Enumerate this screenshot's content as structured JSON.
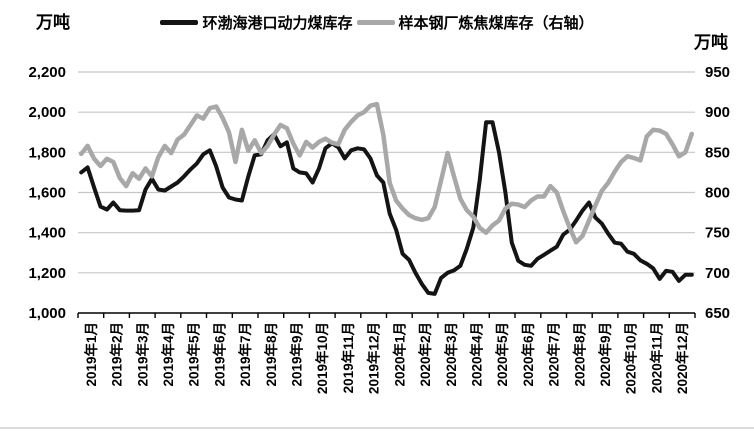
{
  "units": {
    "left": "万吨",
    "right": "万吨"
  },
  "legend": [
    {
      "label": "环渤海港口动力煤库存",
      "color": "#141414"
    },
    {
      "label": "样本钢厂炼焦煤库存（右轴）",
      "color": "#a8a8a8"
    }
  ],
  "chart_data": {
    "type": "line",
    "title": "",
    "xlabel": "",
    "ylabel_left": "万吨",
    "ylabel_right": "万吨",
    "grid": "horizontal",
    "legend_position": "top-center",
    "categories": [
      "2019年1月",
      "2019年2月",
      "2019年3月",
      "2019年4月",
      "2019年5月",
      "2019年6月",
      "2019年7月",
      "2019年8月",
      "2019年9月",
      "2019年10月",
      "2019年11月",
      "2019年12月",
      "2020年1月",
      "2020年2月",
      "2020年3月",
      "2020年4月",
      "2020年5月",
      "2020年6月",
      "2020年7月",
      "2020年8月",
      "2020年9月",
      "2020年10月",
      "2020年11月",
      "2020年12月"
    ],
    "points_per_category": 4,
    "left_axis": {
      "min": 1000,
      "max": 2200,
      "tick_labels": [
        "2,200",
        "2,000",
        "1,800",
        "1,600",
        "1,400",
        "1,200",
        "1,000"
      ],
      "tick_values": [
        2200,
        2000,
        1800,
        1600,
        1400,
        1200,
        1000
      ]
    },
    "right_axis": {
      "min": 650,
      "max": 950,
      "tick_labels": [
        "950",
        "900",
        "850",
        "800",
        "750",
        "700",
        "650"
      ],
      "tick_values": [
        950,
        900,
        850,
        800,
        750,
        700,
        650
      ]
    },
    "series": [
      {
        "name": "环渤海港口动力煤库存",
        "axis": "left",
        "color": "#141414",
        "width": 4,
        "values": [
          1700,
          1725,
          1625,
          1530,
          1515,
          1550,
          1512,
          1510,
          1510,
          1512,
          1615,
          1668,
          1615,
          1610,
          1630,
          1650,
          1680,
          1715,
          1745,
          1790,
          1810,
          1730,
          1625,
          1575,
          1565,
          1560,
          1680,
          1785,
          1790,
          1860,
          1890,
          1830,
          1850,
          1720,
          1700,
          1695,
          1650,
          1720,
          1820,
          1845,
          1825,
          1770,
          1810,
          1820,
          1815,
          1770,
          1685,
          1650,
          1495,
          1415,
          1295,
          1265,
          1200,
          1145,
          1100,
          1095,
          1175,
          1200,
          1212,
          1235,
          1320,
          1425,
          1660,
          1950,
          1950,
          1800,
          1600,
          1350,
          1260,
          1240,
          1235,
          1270,
          1290,
          1310,
          1330,
          1390,
          1415,
          1460,
          1510,
          1550,
          1475,
          1445,
          1395,
          1350,
          1345,
          1305,
          1295,
          1262,
          1245,
          1222,
          1170,
          1210,
          1205,
          1160,
          1190,
          1190
        ]
      },
      {
        "name": "样本钢厂炼焦煤库存（右轴）",
        "axis": "right",
        "color": "#a8a8a8",
        "width": 4.5,
        "values": [
          848,
          858,
          842,
          833,
          842,
          838,
          818,
          808,
          824,
          817,
          830,
          820,
          844,
          858,
          849,
          866,
          872,
          884,
          896,
          892,
          905,
          907,
          893,
          875,
          838,
          878,
          852,
          865,
          849,
          858,
          872,
          884,
          880,
          861,
          846,
          863,
          856,
          863,
          867,
          862,
          860,
          878,
          888,
          896,
          900,
          908,
          910,
          872,
          812,
          790,
          780,
          772,
          768,
          766,
          768,
          782,
          815,
          849,
          820,
          792,
          778,
          770,
          756,
          750,
          759,
          765,
          780,
          786,
          785,
          782,
          790,
          795,
          795,
          808,
          800,
          777,
          756,
          738,
          746,
          765,
          784,
          802,
          812,
          826,
          838,
          845,
          843,
          840,
          870,
          878,
          877,
          873,
          860,
          845,
          850,
          873
        ]
      }
    ]
  },
  "colors": {
    "grid": "#c6c6c6",
    "axis": "#000000",
    "text": "#000000"
  }
}
